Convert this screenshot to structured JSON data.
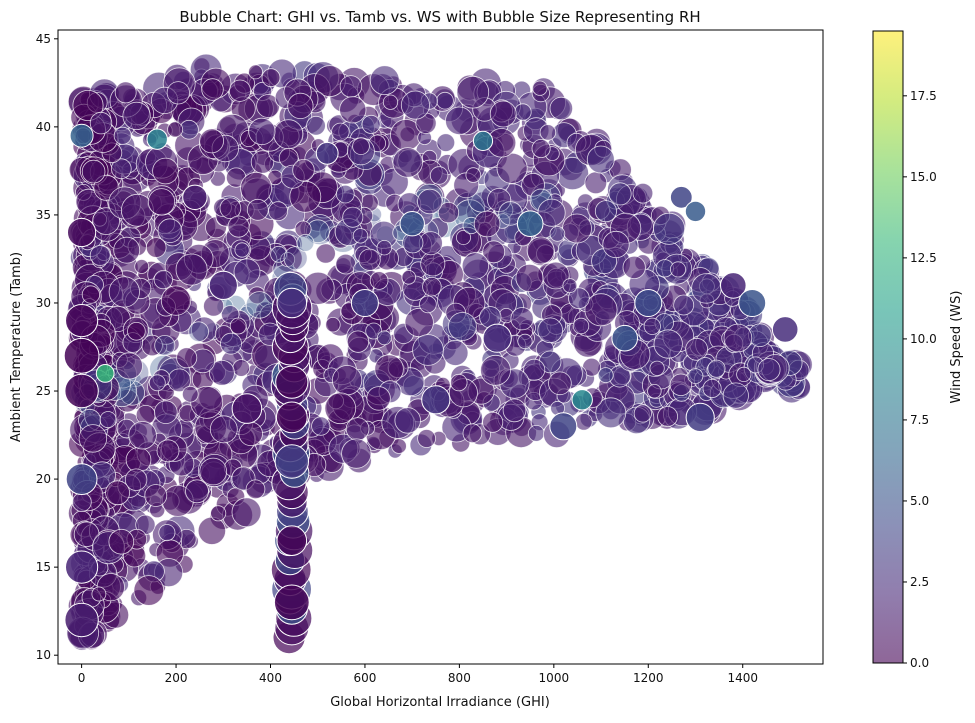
{
  "chart_data": {
    "type": "scatter",
    "title": "Bubble Chart: GHI vs. Tamb vs. WS with Bubble Size Representing RH",
    "xlabel": "Global Horizontal Irradiance (GHI)",
    "ylabel": "Ambient Temperature (Tamb)",
    "xlim": [
      -50,
      1570
    ],
    "ylim": [
      9.5,
      45.5
    ],
    "x_ticks": [
      0,
      200,
      400,
      600,
      800,
      1000,
      1200,
      1400
    ],
    "y_ticks": [
      10,
      15,
      20,
      25,
      30,
      35,
      40,
      45
    ],
    "color": {
      "field": "WS",
      "label": "Wind Speed (WS)",
      "range": [
        0,
        19.5
      ],
      "ticks": [
        0,
        2.5,
        5,
        7.5,
        10,
        12.5,
        15,
        17.5
      ],
      "colormap": [
        "#440154",
        "#482878",
        "#3e4989",
        "#31688e",
        "#26828e",
        "#1f9e89",
        "#35b779",
        "#6ece58",
        "#b5de2b",
        "#fde725"
      ]
    },
    "size": {
      "field": "RH"
    },
    "marker_edge_color": "#ffffff",
    "alpha": 0.6,
    "grid": false,
    "series": [
      {
        "points": [
          {
            "x": 0,
            "y": 27.0,
            "ws": 0.1,
            "rh": 95
          },
          {
            "x": 0,
            "y": 25.0,
            "ws": 0.2,
            "rh": 90
          },
          {
            "x": 0,
            "y": 29.0,
            "ws": 0.3,
            "rh": 85
          },
          {
            "x": 0,
            "y": 34.0,
            "ws": 0.5,
            "rh": 70
          },
          {
            "x": 0,
            "y": 39.5,
            "ws": 6.0,
            "rh": 50
          },
          {
            "x": 0,
            "y": 20.0,
            "ws": 4.0,
            "rh": 80
          },
          {
            "x": 0,
            "y": 15.0,
            "ws": 2.0,
            "rh": 85
          },
          {
            "x": 0,
            "y": 12.0,
            "ws": 1.5,
            "rh": 90
          },
          {
            "x": 50,
            "y": 26.0,
            "ws": 13.0,
            "rh": 30
          },
          {
            "x": 160,
            "y": 39.3,
            "ws": 8.5,
            "rh": 40
          },
          {
            "x": 240,
            "y": 36.0,
            "ws": 1.5,
            "rh": 55
          },
          {
            "x": 300,
            "y": 31.0,
            "ws": 2.0,
            "rh": 70
          },
          {
            "x": 350,
            "y": 24.0,
            "ws": 1.0,
            "rh": 75
          },
          {
            "x": 445,
            "y": 25.5,
            "ws": 0.2,
            "rh": 85
          },
          {
            "x": 445,
            "y": 23.5,
            "ws": 0.2,
            "rh": 80
          },
          {
            "x": 445,
            "y": 21.0,
            "ws": 3.5,
            "rh": 90
          },
          {
            "x": 445,
            "y": 16.5,
            "ws": 0.1,
            "rh": 75
          },
          {
            "x": 445,
            "y": 13.0,
            "ws": 0.1,
            "rh": 95
          },
          {
            "x": 445,
            "y": 30.0,
            "ws": 2.5,
            "rh": 75
          },
          {
            "x": 520,
            "y": 38.5,
            "ws": 3.0,
            "rh": 45
          },
          {
            "x": 600,
            "y": 30.0,
            "ws": 3.5,
            "rh": 65
          },
          {
            "x": 700,
            "y": 34.5,
            "ws": 5.0,
            "rh": 55
          },
          {
            "x": 750,
            "y": 24.5,
            "ws": 3.0,
            "rh": 70
          },
          {
            "x": 850,
            "y": 39.2,
            "ws": 7.5,
            "rh": 35
          },
          {
            "x": 880,
            "y": 28.0,
            "ws": 2.5,
            "rh": 70
          },
          {
            "x": 950,
            "y": 34.5,
            "ws": 6.0,
            "rh": 60
          },
          {
            "x": 1020,
            "y": 23.0,
            "ws": 4.0,
            "rh": 65
          },
          {
            "x": 1060,
            "y": 24.5,
            "ws": 9.0,
            "rh": 40
          },
          {
            "x": 1150,
            "y": 28.0,
            "ws": 5.0,
            "rh": 60
          },
          {
            "x": 1200,
            "y": 30.0,
            "ws": 4.5,
            "rh": 65
          },
          {
            "x": 1270,
            "y": 36.0,
            "ws": 4.0,
            "rh": 45
          },
          {
            "x": 1300,
            "y": 35.2,
            "ws": 5.5,
            "rh": 40
          },
          {
            "x": 1310,
            "y": 23.5,
            "ws": 3.5,
            "rh": 70
          },
          {
            "x": 1380,
            "y": 31.0,
            "ws": 2.0,
            "rh": 60
          },
          {
            "x": 1420,
            "y": 30.0,
            "ws": 5.0,
            "rh": 65
          },
          {
            "x": 1490,
            "y": 28.5,
            "ws": 2.5,
            "rh": 60
          }
        ]
      }
    ]
  }
}
